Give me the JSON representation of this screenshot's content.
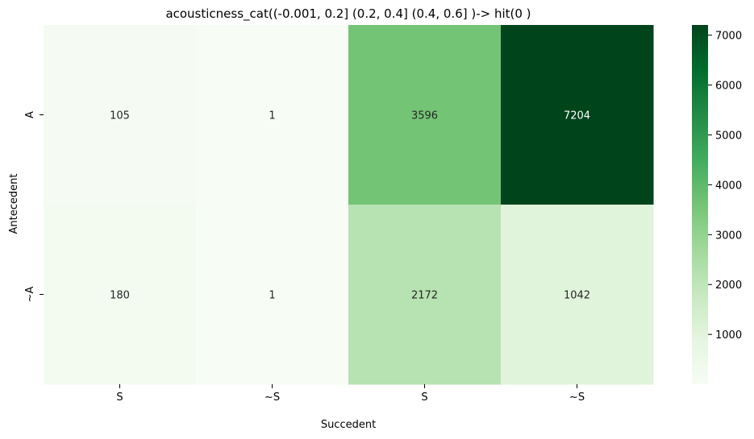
{
  "chart_data": {
    "type": "heatmap",
    "title": "acousticness_cat((-0.001, 0.2] (0.2, 0.4] (0.4, 0.6] )-> hit(0 )",
    "xlabel": "Succedent",
    "ylabel": "Antecedent",
    "x_categories": [
      "S",
      "~S",
      "S",
      "~S"
    ],
    "y_categories": [
      "A",
      "~A"
    ],
    "values": [
      [
        105,
        1,
        3596,
        7204
      ],
      [
        180,
        1,
        2172,
        1042
      ]
    ],
    "colormap": "Greens",
    "colorbar": {
      "ticks": [
        1000,
        2000,
        3000,
        4000,
        5000,
        6000,
        7000
      ],
      "range": [
        1,
        7204
      ]
    },
    "colors": {
      "low": "#f7fcf5",
      "high": "#00441b"
    }
  }
}
